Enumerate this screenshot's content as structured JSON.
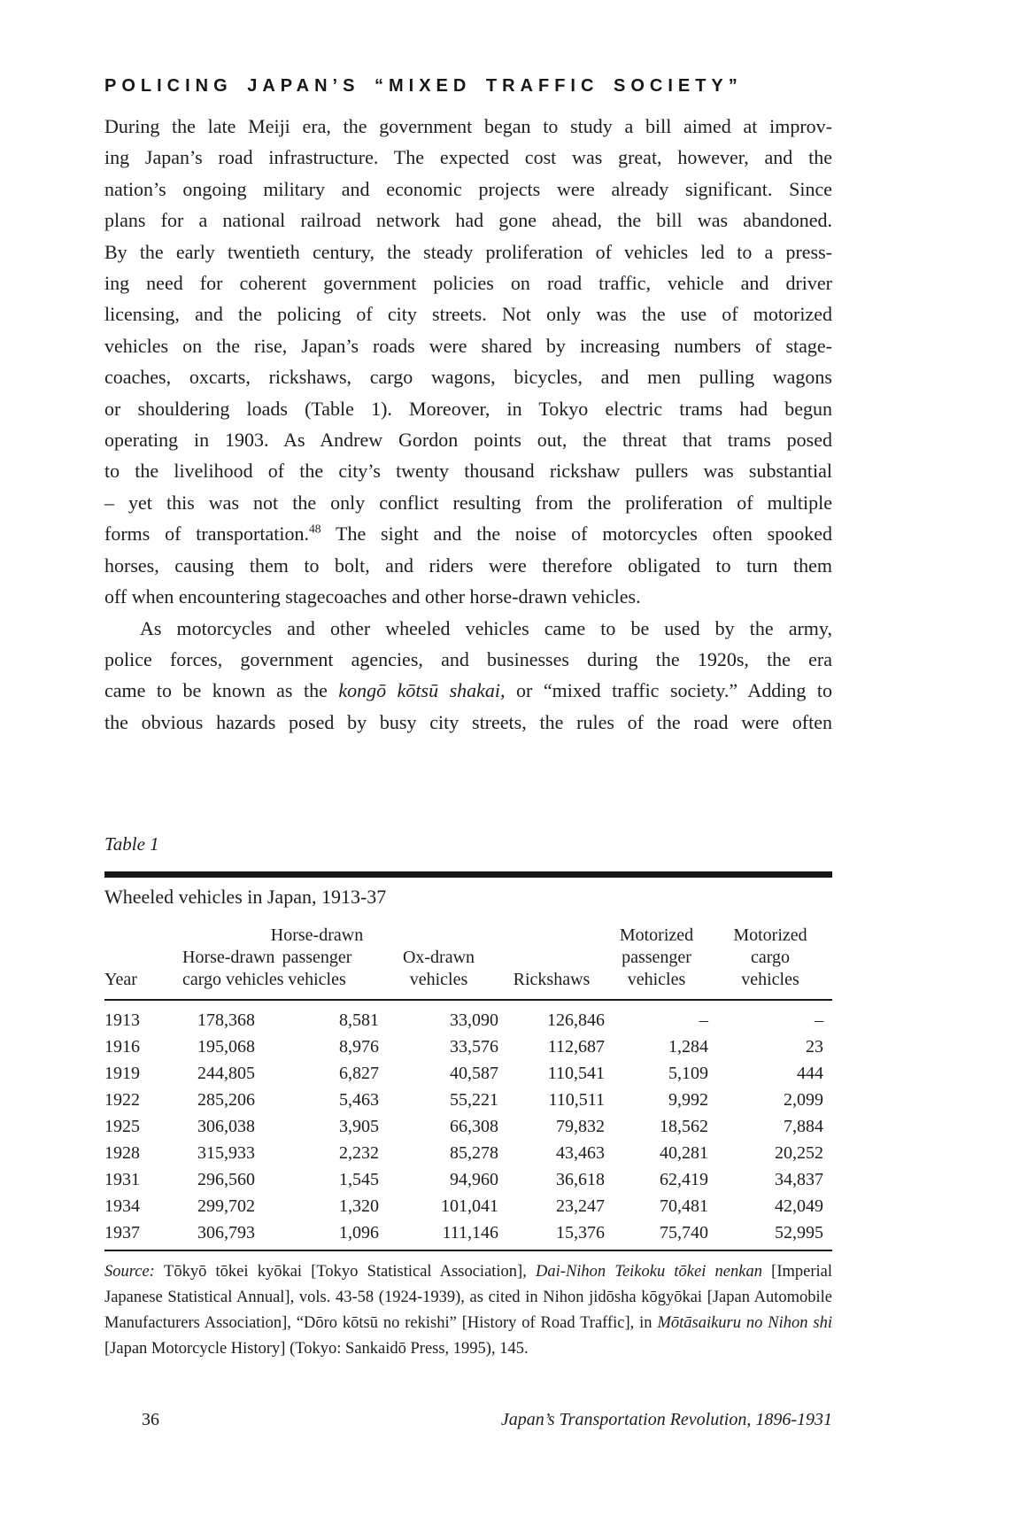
{
  "heading": "POLICING JAPAN’S “MIXED TRAFFIC SOCIETY”",
  "body": {
    "paragraph1_lines": [
      {
        "seg": [
          {
            "t": "During the late Meiji era, the government began to study a bill aimed at improv-"
          }
        ]
      },
      {
        "seg": [
          {
            "t": "ing Japan’s road infrastructure. The expected cost was great, however, and the"
          }
        ]
      },
      {
        "seg": [
          {
            "t": "nation’s ongoing military and economic projects were already significant. Since"
          }
        ]
      },
      {
        "seg": [
          {
            "t": "plans for a national railroad network had gone ahead, the bill was abandoned."
          }
        ]
      },
      {
        "seg": [
          {
            "t": "By the early twentieth century, the steady proliferation of vehicles led to a press-"
          }
        ]
      },
      {
        "seg": [
          {
            "t": "ing need for coherent government policies on road traffic, vehicle and driver"
          }
        ]
      },
      {
        "seg": [
          {
            "t": "licensing, and the policing of city streets. Not only was the use of motorized"
          }
        ]
      },
      {
        "seg": [
          {
            "t": "vehicles on the rise, Japan’s roads were shared by increasing numbers of stage-"
          }
        ]
      },
      {
        "seg": [
          {
            "t": "coaches, oxcarts, rickshaws, cargo wagons, bicycles, and men pulling wagons"
          }
        ]
      },
      {
        "seg": [
          {
            "t": "or shouldering loads (Table 1). Moreover, in Tokyo electric trams had begun"
          }
        ]
      },
      {
        "seg": [
          {
            "t": "operating in 1903. As Andrew Gordon points out, the threat that trams posed"
          }
        ]
      },
      {
        "seg": [
          {
            "t": "to the livelihood of the city’s twenty thousand rickshaw pullers was substantial"
          }
        ]
      },
      {
        "seg": [
          {
            "t": "– yet this was not the only conflict resulting from the proliferation of multiple"
          }
        ]
      },
      {
        "seg": [
          {
            "t": "forms of transportation."
          },
          {
            "t": "48",
            "s": "sup"
          },
          {
            "t": " The sight and the noise of motorcycles often spooked"
          }
        ]
      },
      {
        "seg": [
          {
            "t": "horses, causing them to bolt, and riders were therefore obligated to turn them"
          }
        ]
      },
      {
        "seg": [
          {
            "t": "off when encountering stagecoaches and other horse-drawn vehicles."
          }
        ],
        "just": false
      }
    ],
    "paragraph2_lines": [
      {
        "seg": [
          {
            "t": "As motorcycles and other wheeled vehicles came to be used by the army,"
          }
        ],
        "indent": true
      },
      {
        "seg": [
          {
            "t": "police forces, government agencies, and businesses during the 1920s, the era"
          }
        ]
      },
      {
        "seg": [
          {
            "t": "came to be known as the "
          },
          {
            "t": "kongō kōtsū shakai",
            "s": "i"
          },
          {
            "t": ", or “mixed traffic society.” Adding to"
          }
        ]
      },
      {
        "seg": [
          {
            "t": "the obvious hazards posed by busy city streets, the rules of the road were often"
          }
        ]
      }
    ]
  },
  "table": {
    "label": "Table 1",
    "caption": "Wheeled vehicles in Japan, 1913-37",
    "headers": [
      [
        "Year"
      ],
      [
        "Horse-drawn",
        "cargo vehicles"
      ],
      [
        "Horse-drawn",
        "passenger",
        "vehicles"
      ],
      [
        "Ox-drawn",
        "vehicles"
      ],
      [
        "Rickshaws"
      ],
      [
        "Motorized",
        "passenger",
        "vehicles"
      ],
      [
        "Motorized",
        "cargo",
        "vehicles"
      ]
    ],
    "rows": [
      [
        "1913",
        "178,368",
        "8,581",
        "33,090",
        "126,846",
        "–",
        "–"
      ],
      [
        "1916",
        "195,068",
        "8,976",
        "33,576",
        "112,687",
        "1,284",
        "23"
      ],
      [
        "1919",
        "244,805",
        "6,827",
        "40,587",
        "110,541",
        "5,109",
        "444"
      ],
      [
        "1922",
        "285,206",
        "5,463",
        "55,221",
        "110,511",
        "9,992",
        "2,099"
      ],
      [
        "1925",
        "306,038",
        "3,905",
        "66,308",
        "79,832",
        "18,562",
        "7,884"
      ],
      [
        "1928",
        "315,933",
        "2,232",
        "85,278",
        "43,463",
        "40,281",
        "20,252"
      ],
      [
        "1931",
        "296,560",
        "1,545",
        "94,960",
        "36,618",
        "62,419",
        "34,837"
      ],
      [
        "1934",
        "299,702",
        "1,320",
        "101,041",
        "23,247",
        "70,481",
        "42,049"
      ],
      [
        "1937",
        "306,793",
        "1,096",
        "111,146",
        "15,376",
        "75,740",
        "52,995"
      ]
    ],
    "source_lines": [
      {
        "seg": [
          {
            "t": "Source: ",
            "s": "i"
          },
          {
            "t": "Tōkyō tōkei kyōkai [Tokyo Statistical Association], "
          },
          {
            "t": "Dai-Nihon Teikoku tōkei nenkan",
            "s": "i"
          },
          {
            "t": " [Imperial"
          }
        ]
      },
      {
        "seg": [
          {
            "t": "Japanese Statistical Annual], vols. 43-58 (1924-1939), as cited in Nihon jidōsha kōgyōkai [Japan Automobile"
          }
        ]
      },
      {
        "seg": [
          {
            "t": "Manufacturers Association], “Dōro kōtsū no rekishi” [History of Road Traffic], in "
          },
          {
            "t": "Mōtāsaikuru no Nihon shi",
            "s": "i"
          }
        ]
      },
      {
        "seg": [
          {
            "t": "[Japan Motorcycle History] (Tokyo: Sankaidō Press, 1995), 145."
          }
        ],
        "just": false
      }
    ]
  },
  "footer": {
    "page_number": "36",
    "running_title": "Japan’s Transportation Revolution, 1896-1931"
  }
}
